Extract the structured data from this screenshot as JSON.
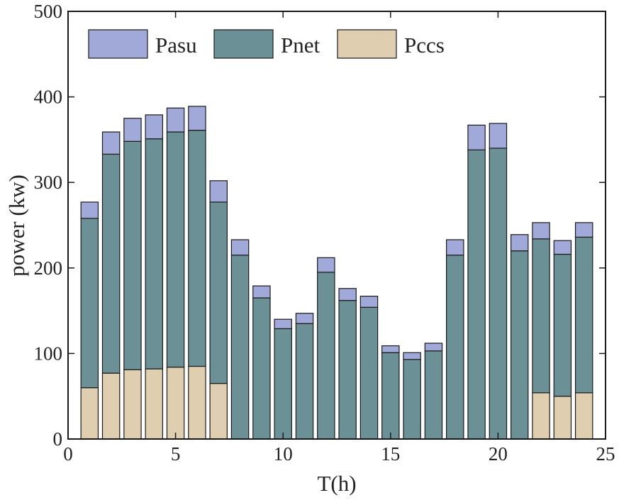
{
  "chart_data": {
    "type": "bar",
    "stacked": true,
    "title": "",
    "xlabel": "T(h)",
    "ylabel": "power (kw)",
    "xlim": [
      0,
      25
    ],
    "ylim": [
      0,
      500
    ],
    "xticks": [
      0,
      5,
      10,
      15,
      20,
      25
    ],
    "yticks": [
      0,
      100,
      200,
      300,
      400,
      500
    ],
    "grid": false,
    "legend_position": "top-left",
    "x": [
      1,
      2,
      3,
      4,
      5,
      6,
      7,
      8,
      9,
      10,
      11,
      12,
      13,
      14,
      15,
      16,
      17,
      18,
      19,
      20,
      21,
      22,
      23,
      24
    ],
    "series": [
      {
        "name": "Pccs",
        "color": "#dfceb0",
        "values": [
          60,
          77,
          81,
          82,
          84,
          85,
          65,
          0,
          0,
          0,
          0,
          0,
          0,
          0,
          0,
          0,
          0,
          0,
          0,
          0,
          0,
          54,
          50,
          54
        ]
      },
      {
        "name": "Pnet",
        "color": "#6b9196",
        "values": [
          198,
          256,
          267,
          269,
          275,
          276,
          212,
          215,
          165,
          129,
          135,
          195,
          162,
          154,
          101,
          93,
          103,
          215,
          338,
          340,
          220,
          180,
          166,
          182
        ]
      },
      {
        "name": "Pasu",
        "color": "#a0a9d8",
        "values": [
          19,
          26,
          27,
          28,
          28,
          28,
          25,
          18,
          14,
          11,
          12,
          17,
          14,
          13,
          8,
          8,
          9,
          18,
          29,
          29,
          19,
          19,
          16,
          17
        ]
      }
    ],
    "legend_order": [
      "Pasu",
      "Pnet",
      "Pccs"
    ]
  }
}
